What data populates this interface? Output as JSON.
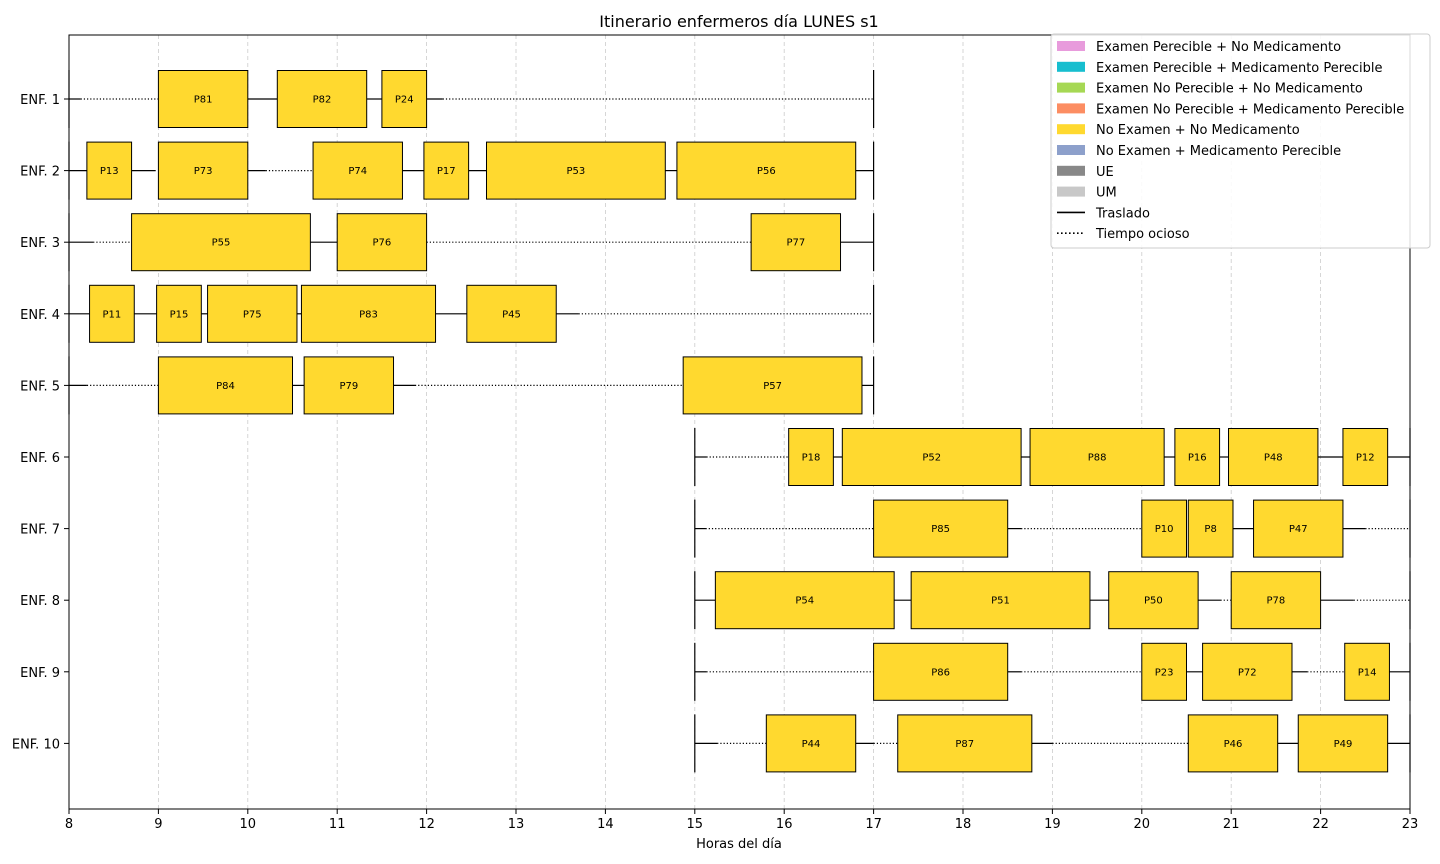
{
  "chart_data": {
    "type": "gantt",
    "title": "Itinerario enfermeros día LUNES s1",
    "xlabel": "Horas del día",
    "xlim": [
      8,
      23
    ],
    "xticks": [
      "8",
      "9",
      "10",
      "11",
      "12",
      "13",
      "14",
      "15",
      "16",
      "17",
      "18",
      "19",
      "20",
      "21",
      "22",
      "23"
    ],
    "grid": "vertical dashed",
    "legend_position": "top-right",
    "legend": [
      {
        "label": "Examen Perecible + No Medicamento",
        "color": "#e89bdc",
        "kind": "patch"
      },
      {
        "label": "Examen Perecible + Medicamento Perecible",
        "color": "#17becf",
        "kind": "patch"
      },
      {
        "label": "Examen No Perecible + No Medicamento",
        "color": "#a6d854",
        "kind": "patch"
      },
      {
        "label": "Examen No Perecible + Medicamento Perecible",
        "color": "#fc8d62",
        "kind": "patch"
      },
      {
        "label": "No Examen + No Medicamento",
        "color": "#ffd92f",
        "kind": "patch"
      },
      {
        "label": "No Examen + Medicamento Perecible",
        "color": "#8da0cb",
        "kind": "patch"
      },
      {
        "label": "UE",
        "color": "#888888",
        "kind": "patch"
      },
      {
        "label": "UM",
        "color": "#c8c8c8",
        "kind": "patch"
      },
      {
        "label": "Traslado",
        "color": "#000000",
        "kind": "solid"
      },
      {
        "label": "Tiempo ocioso",
        "color": "#000000",
        "kind": "dotted"
      }
    ],
    "nurses": [
      {
        "name": "ENF. 1",
        "shift": [
          8,
          17
        ],
        "tasks": [
          {
            "label": "P81",
            "start": 9.0,
            "end": 10.0,
            "category": "No Examen + No Medicamento"
          },
          {
            "label": "P82",
            "start": 10.33,
            "end": 11.33,
            "category": "No Examen + No Medicamento"
          },
          {
            "label": "P24",
            "start": 11.5,
            "end": 12.0,
            "category": "No Examen + No Medicamento"
          }
        ],
        "segments": [
          {
            "type": "Traslado",
            "start": 8.0,
            "end": 8.13
          },
          {
            "type": "Tiempo ocioso",
            "start": 8.13,
            "end": 9.0
          },
          {
            "type": "Traslado",
            "start": 10.0,
            "end": 10.33
          },
          {
            "type": "Traslado",
            "start": 11.33,
            "end": 11.5
          },
          {
            "type": "Traslado",
            "start": 12.0,
            "end": 12.18
          },
          {
            "type": "Tiempo ocioso",
            "start": 12.18,
            "end": 17.0
          }
        ]
      },
      {
        "name": "ENF. 2",
        "shift": [
          8,
          17
        ],
        "tasks": [
          {
            "label": "P13",
            "start": 8.2,
            "end": 8.7,
            "category": "No Examen + No Medicamento"
          },
          {
            "label": "P73",
            "start": 9.0,
            "end": 10.0,
            "category": "No Examen + No Medicamento"
          },
          {
            "label": "P74",
            "start": 10.73,
            "end": 11.73,
            "category": "No Examen + No Medicamento"
          },
          {
            "label": "P17",
            "start": 11.97,
            "end": 12.47,
            "category": "No Examen + No Medicamento"
          },
          {
            "label": "P53",
            "start": 12.67,
            "end": 14.67,
            "category": "No Examen + No Medicamento"
          },
          {
            "label": "P56",
            "start": 14.8,
            "end": 16.8,
            "category": "No Examen + No Medicamento"
          }
        ],
        "segments": [
          {
            "type": "Traslado",
            "start": 8.0,
            "end": 8.2
          },
          {
            "type": "Traslado",
            "start": 8.7,
            "end": 8.97
          },
          {
            "type": "Traslado",
            "start": 10.0,
            "end": 10.2
          },
          {
            "type": "Tiempo ocioso",
            "start": 10.2,
            "end": 10.73
          },
          {
            "type": "Traslado",
            "start": 11.73,
            "end": 11.97
          },
          {
            "type": "Traslado",
            "start": 12.47,
            "end": 12.67
          },
          {
            "type": "Traslado",
            "start": 14.67,
            "end": 14.8
          },
          {
            "type": "Traslado",
            "start": 16.8,
            "end": 17.0
          }
        ]
      },
      {
        "name": "ENF. 3",
        "shift": [
          8,
          17
        ],
        "tasks": [
          {
            "label": "P55",
            "start": 8.7,
            "end": 10.7,
            "category": "No Examen + No Medicamento"
          },
          {
            "label": "P76",
            "start": 11.0,
            "end": 12.0,
            "category": "No Examen + No Medicamento"
          },
          {
            "label": "P77",
            "start": 15.63,
            "end": 16.63,
            "category": "No Examen + No Medicamento"
          }
        ],
        "segments": [
          {
            "type": "Traslado",
            "start": 8.0,
            "end": 8.27
          },
          {
            "type": "Tiempo ocioso",
            "start": 8.27,
            "end": 8.7
          },
          {
            "type": "Traslado",
            "start": 10.7,
            "end": 11.0
          },
          {
            "type": "Tiempo ocioso",
            "start": 12.0,
            "end": 15.63
          },
          {
            "type": "Traslado",
            "start": 16.63,
            "end": 17.0
          }
        ]
      },
      {
        "name": "ENF. 4",
        "shift": [
          8,
          17
        ],
        "tasks": [
          {
            "label": "P11",
            "start": 8.23,
            "end": 8.73,
            "category": "No Examen + No Medicamento"
          },
          {
            "label": "P15",
            "start": 8.98,
            "end": 9.48,
            "category": "No Examen + No Medicamento"
          },
          {
            "label": "P75",
            "start": 9.55,
            "end": 10.55,
            "category": "No Examen + No Medicamento"
          },
          {
            "label": "P83",
            "start": 10.6,
            "end": 12.1,
            "category": "No Examen + No Medicamento"
          },
          {
            "label": "P45",
            "start": 12.45,
            "end": 13.45,
            "category": "No Examen + No Medicamento"
          }
        ],
        "segments": [
          {
            "type": "Traslado",
            "start": 8.0,
            "end": 8.23
          },
          {
            "type": "Traslado",
            "start": 8.73,
            "end": 8.98
          },
          {
            "type": "Traslado",
            "start": 9.48,
            "end": 9.55
          },
          {
            "type": "Traslado",
            "start": 10.55,
            "end": 10.6
          },
          {
            "type": "Traslado",
            "start": 12.1,
            "end": 12.45
          },
          {
            "type": "Traslado",
            "start": 13.45,
            "end": 13.7
          },
          {
            "type": "Tiempo ocioso",
            "start": 13.7,
            "end": 17.0
          }
        ]
      },
      {
        "name": "ENF. 5",
        "shift": [
          8,
          17
        ],
        "tasks": [
          {
            "label": "P84",
            "start": 9.0,
            "end": 10.5,
            "category": "No Examen + No Medicamento"
          },
          {
            "label": "P79",
            "start": 10.63,
            "end": 11.63,
            "category": "No Examen + No Medicamento"
          },
          {
            "label": "P57",
            "start": 14.87,
            "end": 16.87,
            "category": "No Examen + No Medicamento"
          }
        ],
        "segments": [
          {
            "type": "Traslado",
            "start": 8.0,
            "end": 8.2
          },
          {
            "type": "Tiempo ocioso",
            "start": 8.2,
            "end": 9.0
          },
          {
            "type": "Traslado",
            "start": 10.5,
            "end": 10.63
          },
          {
            "type": "Traslado",
            "start": 11.63,
            "end": 11.87
          },
          {
            "type": "Tiempo ocioso",
            "start": 11.87,
            "end": 14.87
          },
          {
            "type": "Traslado",
            "start": 16.87,
            "end": 17.0
          }
        ]
      },
      {
        "name": "ENF. 6",
        "shift": [
          15,
          23
        ],
        "tasks": [
          {
            "label": "P18",
            "start": 16.05,
            "end": 16.55,
            "category": "No Examen + No Medicamento"
          },
          {
            "label": "P52",
            "start": 16.65,
            "end": 18.65,
            "category": "No Examen + No Medicamento"
          },
          {
            "label": "P88",
            "start": 18.75,
            "end": 20.25,
            "category": "No Examen + No Medicamento"
          },
          {
            "label": "P16",
            "start": 20.37,
            "end": 20.87,
            "category": "No Examen + No Medicamento"
          },
          {
            "label": "P48",
            "start": 20.97,
            "end": 21.97,
            "category": "No Examen + No Medicamento"
          },
          {
            "label": "P12",
            "start": 22.25,
            "end": 22.75,
            "category": "No Examen + No Medicamento"
          }
        ],
        "segments": [
          {
            "type": "Traslado",
            "start": 15.0,
            "end": 15.13
          },
          {
            "type": "Tiempo ocioso",
            "start": 15.13,
            "end": 16.05
          },
          {
            "type": "Traslado",
            "start": 16.55,
            "end": 16.65
          },
          {
            "type": "Traslado",
            "start": 18.65,
            "end": 18.75
          },
          {
            "type": "Traslado",
            "start": 20.25,
            "end": 20.37
          },
          {
            "type": "Traslado",
            "start": 20.87,
            "end": 20.97
          },
          {
            "type": "Traslado",
            "start": 21.97,
            "end": 22.25
          },
          {
            "type": "Traslado",
            "start": 22.75,
            "end": 23.0
          }
        ]
      },
      {
        "name": "ENF. 7",
        "shift": [
          15,
          23
        ],
        "tasks": [
          {
            "label": "P85",
            "start": 17.0,
            "end": 18.5,
            "category": "No Examen + No Medicamento"
          },
          {
            "label": "P10",
            "start": 20.0,
            "end": 20.5,
            "category": "No Examen + No Medicamento"
          },
          {
            "label": "P8",
            "start": 20.52,
            "end": 21.02,
            "category": "No Examen + No Medicamento"
          },
          {
            "label": "P47",
            "start": 21.25,
            "end": 22.25,
            "category": "No Examen + No Medicamento"
          }
        ],
        "segments": [
          {
            "type": "Traslado",
            "start": 15.0,
            "end": 15.12
          },
          {
            "type": "Tiempo ocioso",
            "start": 15.12,
            "end": 17.0
          },
          {
            "type": "Traslado",
            "start": 18.5,
            "end": 18.65
          },
          {
            "type": "Tiempo ocioso",
            "start": 18.65,
            "end": 20.0
          },
          {
            "type": "Traslado",
            "start": 21.02,
            "end": 21.25
          },
          {
            "type": "Traslado",
            "start": 22.25,
            "end": 22.5
          },
          {
            "type": "Tiempo ocioso",
            "start": 22.5,
            "end": 23.0
          }
        ]
      },
      {
        "name": "ENF. 8",
        "shift": [
          15,
          23
        ],
        "tasks": [
          {
            "label": "P54",
            "start": 15.23,
            "end": 17.23,
            "category": "No Examen + No Medicamento"
          },
          {
            "label": "P51",
            "start": 17.42,
            "end": 19.42,
            "category": "No Examen + No Medicamento"
          },
          {
            "label": "P50",
            "start": 19.63,
            "end": 20.63,
            "category": "No Examen + No Medicamento"
          },
          {
            "label": "P78",
            "start": 21.0,
            "end": 22.0,
            "category": "No Examen + No Medicamento"
          }
        ],
        "segments": [
          {
            "type": "Traslado",
            "start": 15.0,
            "end": 15.23
          },
          {
            "type": "Traslado",
            "start": 17.23,
            "end": 17.42
          },
          {
            "type": "Traslado",
            "start": 19.42,
            "end": 19.63
          },
          {
            "type": "Traslado",
            "start": 20.63,
            "end": 20.88
          },
          {
            "type": "Tiempo ocioso",
            "start": 20.88,
            "end": 21.0
          },
          {
            "type": "Traslado",
            "start": 22.0,
            "end": 22.37
          },
          {
            "type": "Tiempo ocioso",
            "start": 22.37,
            "end": 23.0
          }
        ]
      },
      {
        "name": "ENF. 9",
        "shift": [
          15,
          23
        ],
        "tasks": [
          {
            "label": "P86",
            "start": 17.0,
            "end": 18.5,
            "category": "No Examen + No Medicamento"
          },
          {
            "label": "P23",
            "start": 20.0,
            "end": 20.5,
            "category": "No Examen + No Medicamento"
          },
          {
            "label": "P72",
            "start": 20.68,
            "end": 21.68,
            "category": "No Examen + No Medicamento"
          },
          {
            "label": "P14",
            "start": 22.27,
            "end": 22.77,
            "category": "No Examen + No Medicamento"
          }
        ],
        "segments": [
          {
            "type": "Traslado",
            "start": 15.0,
            "end": 15.13
          },
          {
            "type": "Tiempo ocioso",
            "start": 15.13,
            "end": 17.0
          },
          {
            "type": "Traslado",
            "start": 18.5,
            "end": 18.65
          },
          {
            "type": "Tiempo ocioso",
            "start": 18.65,
            "end": 20.0
          },
          {
            "type": "Traslado",
            "start": 20.5,
            "end": 20.68
          },
          {
            "type": "Traslado",
            "start": 21.68,
            "end": 21.85
          },
          {
            "type": "Tiempo ocioso",
            "start": 21.85,
            "end": 22.27
          },
          {
            "type": "Traslado",
            "start": 22.77,
            "end": 23.0
          }
        ]
      },
      {
        "name": "ENF. 10",
        "shift": [
          15,
          23
        ],
        "tasks": [
          {
            "label": "P44",
            "start": 15.8,
            "end": 16.8,
            "category": "No Examen + No Medicamento"
          },
          {
            "label": "P87",
            "start": 17.27,
            "end": 18.77,
            "category": "No Examen + No Medicamento"
          },
          {
            "label": "P46",
            "start": 20.52,
            "end": 21.52,
            "category": "No Examen + No Medicamento"
          },
          {
            "label": "P49",
            "start": 21.75,
            "end": 22.75,
            "category": "No Examen + No Medicamento"
          }
        ],
        "segments": [
          {
            "type": "Traslado",
            "start": 15.0,
            "end": 15.25
          },
          {
            "type": "Tiempo ocioso",
            "start": 15.25,
            "end": 15.8
          },
          {
            "type": "Traslado",
            "start": 16.8,
            "end": 17.0
          },
          {
            "type": "Tiempo ocioso",
            "start": 17.0,
            "end": 17.27
          },
          {
            "type": "Traslado",
            "start": 18.77,
            "end": 19.0
          },
          {
            "type": "Tiempo ocioso",
            "start": 19.0,
            "end": 20.52
          },
          {
            "type": "Traslado",
            "start": 21.52,
            "end": 21.75
          },
          {
            "type": "Traslado",
            "start": 22.75,
            "end": 23.0
          }
        ]
      }
    ]
  }
}
